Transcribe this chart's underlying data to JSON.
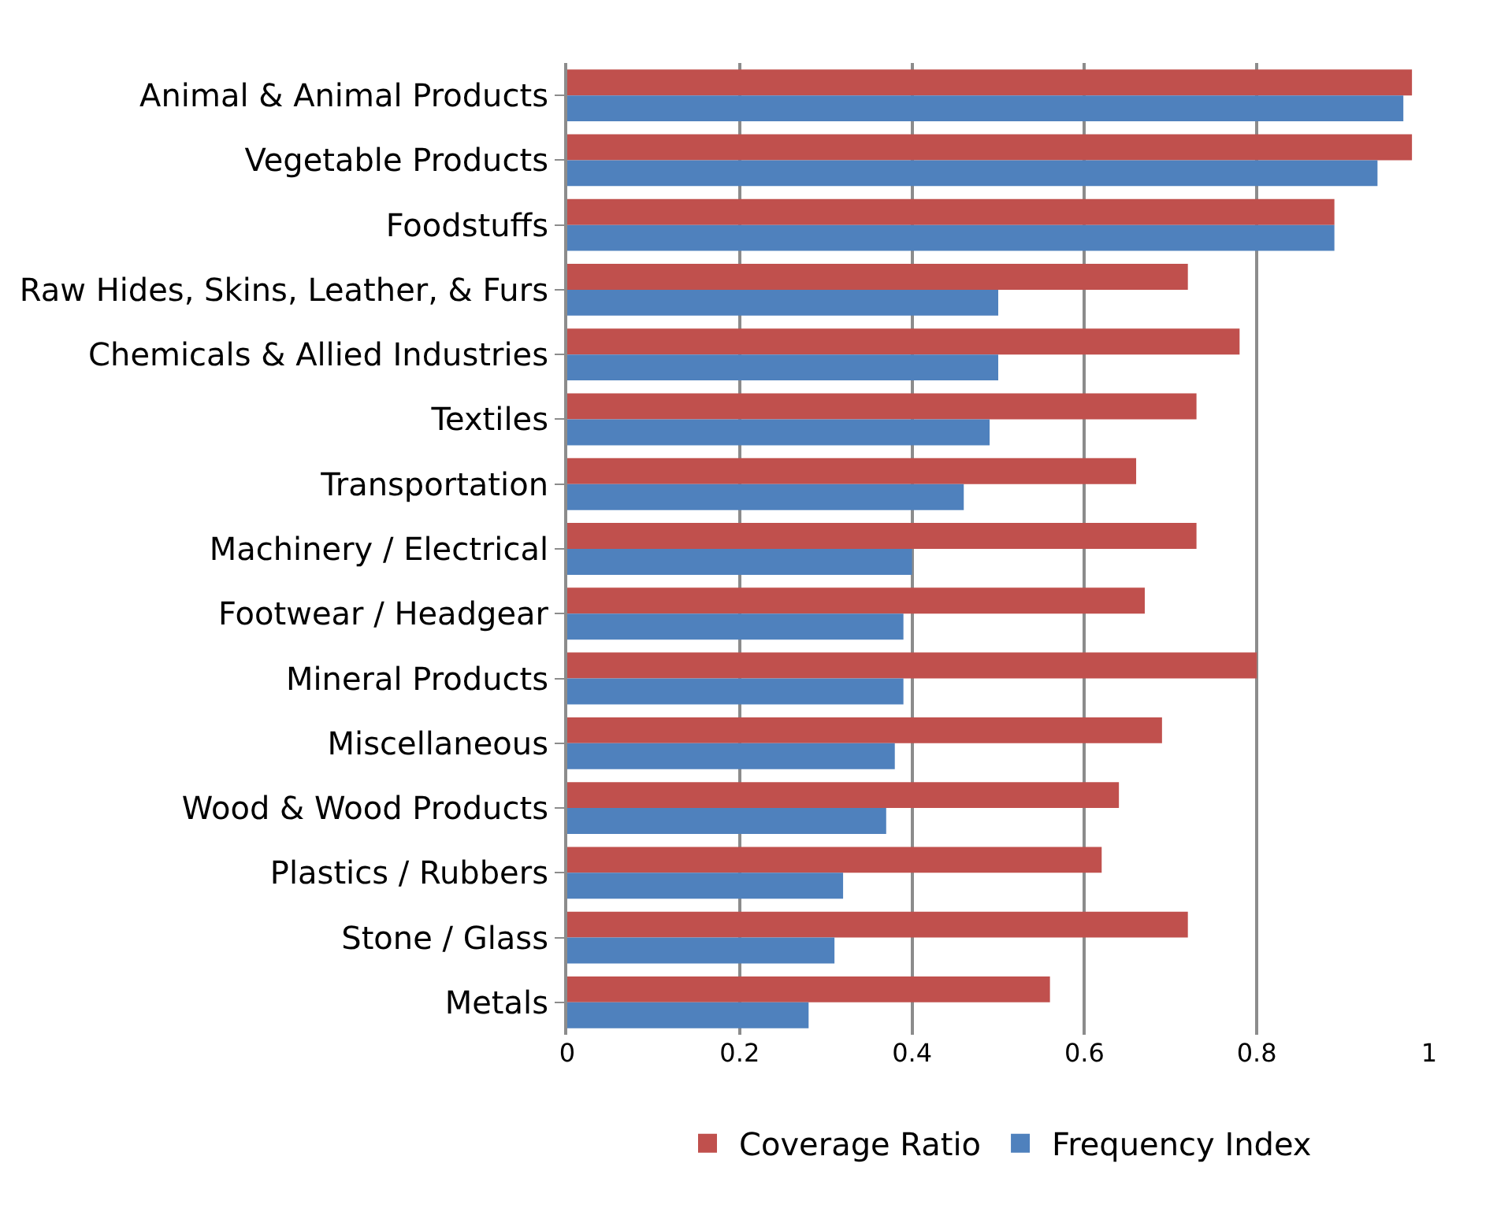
{
  "chart_data": {
    "type": "bar",
    "orientation": "horizontal",
    "categories": [
      "Animal & Animal Products",
      "Vegetable Products",
      "Foodstuffs",
      "Raw Hides, Skins, Leather, & Furs",
      "Chemicals & Allied Industries",
      "Textiles",
      "Transportation",
      "Machinery / Electrical",
      "Footwear / Headgear",
      "Mineral Products",
      "Miscellaneous",
      "Wood & Wood Products",
      "Plastics / Rubbers",
      "Stone / Glass",
      "Metals"
    ],
    "series": [
      {
        "name": "Coverage Ratio",
        "color": "#c0504d",
        "values": [
          0.98,
          0.98,
          0.89,
          0.72,
          0.78,
          0.73,
          0.66,
          0.73,
          0.67,
          0.8,
          0.69,
          0.64,
          0.62,
          0.72,
          0.56
        ]
      },
      {
        "name": "Frequency Index",
        "color": "#4f81bd",
        "values": [
          0.97,
          0.94,
          0.89,
          0.5,
          0.5,
          0.49,
          0.46,
          0.4,
          0.39,
          0.39,
          0.38,
          0.37,
          0.32,
          0.31,
          0.28
        ]
      }
    ],
    "xlim": [
      0,
      1
    ],
    "xticks": [
      0,
      0.2,
      0.4,
      0.6,
      0.8,
      1
    ],
    "grid": "x",
    "legend": "bottom"
  }
}
